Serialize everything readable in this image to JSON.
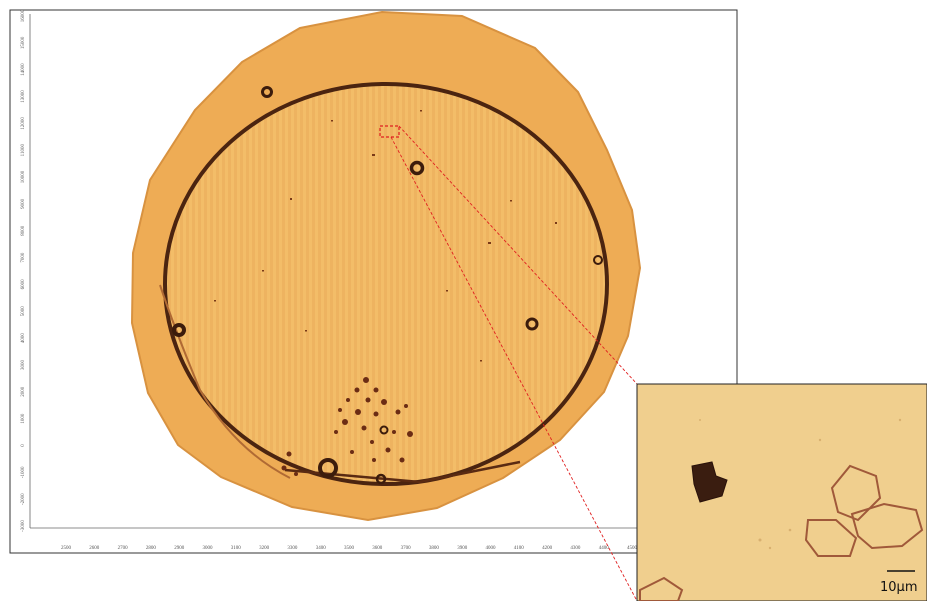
{
  "plot": {
    "x_ticks": [
      "2500",
      "2600",
      "2700",
      "2800",
      "2900",
      "3000",
      "3100",
      "3200",
      "3300",
      "3400",
      "3500",
      "3600",
      "3700",
      "3800",
      "3900",
      "4000",
      "4100",
      "4200",
      "4300",
      "4400",
      "4500"
    ],
    "y_ticks": [
      "16000",
      "15000",
      "14000",
      "13000",
      "12000",
      "11000",
      "10000",
      "9000",
      "8000",
      "7000",
      "6000",
      "5000",
      "4000",
      "3000",
      "2000",
      "1000",
      "0",
      "-1000",
      "-2000",
      "-3000"
    ]
  },
  "inset": {
    "scale_bar_label": "10μm"
  },
  "colors": {
    "wafer_fill": "#f2b760",
    "wafer_edge": "#e7a144",
    "inner_ring": "#4b2410",
    "inset_background": "#f0cf8e",
    "zoom_marker": "#e02020",
    "crystal_dark": "#3a1d10",
    "crystal_outline": "#a0593a"
  }
}
